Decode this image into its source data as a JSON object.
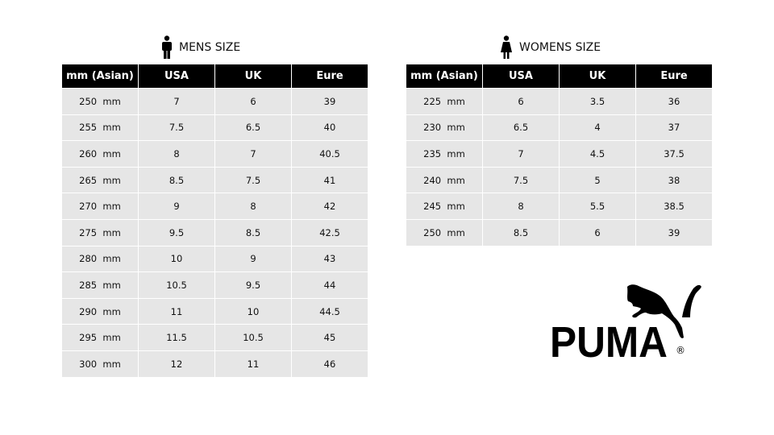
{
  "mens": {
    "title": "MENS SIZE",
    "icon": "man-icon",
    "headers": [
      "mm (Asian)",
      "USA",
      "UK",
      "Eure"
    ],
    "rows": [
      [
        "250  mm",
        "7",
        "6",
        "39"
      ],
      [
        "255  mm",
        "7.5",
        "6.5",
        "40"
      ],
      [
        "260  mm",
        "8",
        "7",
        "40.5"
      ],
      [
        "265  mm",
        "8.5",
        "7.5",
        "41"
      ],
      [
        "270  mm",
        "9",
        "8",
        "42"
      ],
      [
        "275  mm",
        "9.5",
        "8.5",
        "42.5"
      ],
      [
        "280  mm",
        "10",
        "9",
        "43"
      ],
      [
        "285  mm",
        "10.5",
        "9.5",
        "44"
      ],
      [
        "290  mm",
        "11",
        "10",
        "44.5"
      ],
      [
        "295  mm",
        "11.5",
        "10.5",
        "45"
      ],
      [
        "300  mm",
        "12",
        "11",
        "46"
      ]
    ]
  },
  "womens": {
    "title": "WOMENS SIZE",
    "icon": "woman-icon",
    "headers": [
      "mm (Asian)",
      "USA",
      "UK",
      "Eure"
    ],
    "rows": [
      [
        "225  mm",
        "6",
        "3.5",
        "36"
      ],
      [
        "230  mm",
        "6.5",
        "4",
        "37"
      ],
      [
        "235  mm",
        "7",
        "4.5",
        "37.5"
      ],
      [
        "240  mm",
        "7.5",
        "5",
        "38"
      ],
      [
        "245  mm",
        "8",
        "5.5",
        "38.5"
      ],
      [
        "250  mm",
        "8.5",
        "6",
        "39"
      ]
    ]
  },
  "logo": {
    "text": "PUMA",
    "mark": "®"
  }
}
